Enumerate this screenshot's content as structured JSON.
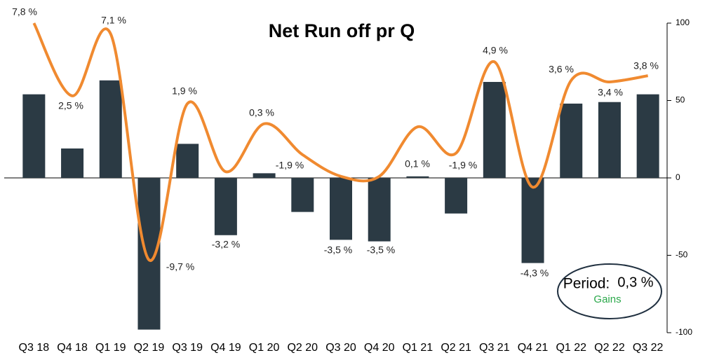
{
  "chart_data": {
    "type": "bar_line",
    "title": "Net Run off pr Q",
    "categories": [
      "Q3 18",
      "Q4 18",
      "Q1 19",
      "Q2 19",
      "Q3 19",
      "Q4 19",
      "Q1 20",
      "Q2 20",
      "Q3 20",
      "Q4 20",
      "Q1 21",
      "Q2 21",
      "Q3 21",
      "Q4 21",
      "Q1 22",
      "Q2 22",
      "Q3 22"
    ],
    "series": [
      {
        "type": "bar",
        "color": "#2b3a44",
        "values": [
          54,
          19,
          63,
          -98,
          22,
          -37,
          3,
          -22,
          -40,
          -41,
          1,
          -23,
          62,
          -55,
          48,
          49,
          54
        ]
      },
      {
        "type": "line",
        "color": "#f08a30",
        "values": [
          100,
          53,
          93,
          -53,
          48,
          4,
          35,
          15,
          1,
          1,
          33,
          16,
          75,
          -6,
          63,
          62,
          66
        ]
      }
    ],
    "annotations": [
      "7,8 %",
      "2,5 %",
      "7,1 %",
      "-9,7 %",
      "1,9 %",
      "-3,2 %",
      "0,3 %",
      "-1,9 %",
      "-3,5 %",
      "-3,5 %",
      "0,1 %",
      "-1,9 %",
      "4,9 %",
      "-4,3 %",
      "3,6 %",
      "3,4 %",
      "3,8 %"
    ],
    "ylim": [
      -100,
      100
    ],
    "yticks": [
      -100,
      -50,
      0,
      50,
      100
    ],
    "axis_side": "right",
    "period_box": {
      "label": "Period:",
      "value": "0,3 %",
      "note": "Gains"
    }
  }
}
